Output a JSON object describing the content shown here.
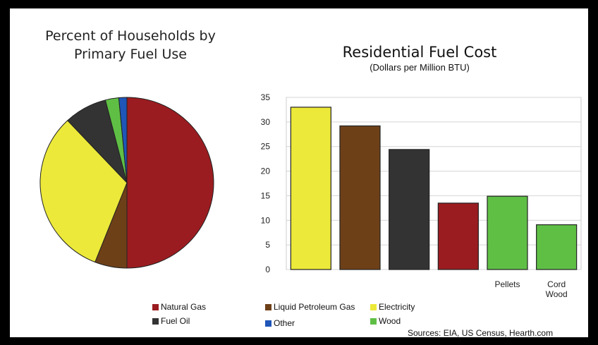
{
  "colors": {
    "natural_gas": "#9b1c20",
    "lpg": "#6e4018",
    "electricity": "#ece93a",
    "fuel_oil": "#333333",
    "wood": "#5fbf45",
    "other": "#1f56b8"
  },
  "chart_data": [
    {
      "type": "pie",
      "title_line1": "Percent of Households by",
      "title_line2": "Primary Fuel Use",
      "slices": [
        {
          "key": "natural_gas",
          "value": 50
        },
        {
          "key": "lpg",
          "value": 6
        },
        {
          "key": "electricity",
          "value": 32
        },
        {
          "key": "fuel_oil",
          "value": 8
        },
        {
          "key": "wood",
          "value": 2.5
        },
        {
          "key": "other",
          "value": 1.5
        }
      ]
    },
    {
      "type": "bar",
      "title": "Residential Fuel Cost",
      "subtitle": "(Dollars per Million BTU)",
      "ylim": [
        0,
        35
      ],
      "yticks": [
        "0",
        "5",
        "10",
        "15",
        "20",
        "25",
        "30",
        "35"
      ],
      "grid": true,
      "bars": [
        {
          "key": "electricity",
          "value": 33,
          "label": ""
        },
        {
          "key": "lpg",
          "value": 29.2,
          "label": ""
        },
        {
          "key": "fuel_oil",
          "value": 24.4,
          "label": ""
        },
        {
          "key": "natural_gas",
          "value": 13.5,
          "label": ""
        },
        {
          "key": "wood",
          "value": 14.9,
          "label": "Pellets"
        },
        {
          "key": "wood",
          "value": 9.1,
          "label": "Cord\nWood"
        }
      ]
    }
  ],
  "legend": [
    {
      "key": "natural_gas",
      "label": "Natural Gas"
    },
    {
      "key": "lpg",
      "label": "Liquid Petroleum Gas"
    },
    {
      "key": "electricity",
      "label": "Electricity"
    },
    {
      "key": "fuel_oil",
      "label": "Fuel Oil"
    },
    {
      "key": "other",
      "label": "Other"
    },
    {
      "key": "wood",
      "label": "Wood"
    }
  ],
  "sources": "Sources: EIA, US Census, Hearth.com"
}
